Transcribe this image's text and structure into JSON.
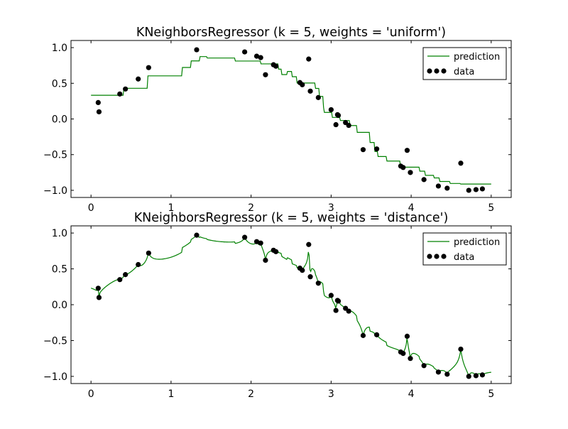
{
  "chart_data": [
    {
      "type": "scatter",
      "title": "KNeighborsRegressor (k = 5, weights = 'uniform')",
      "k": 5,
      "weights": "uniform",
      "xlim": [
        -0.25,
        5.25
      ],
      "ylim": [
        -1.1,
        1.1
      ],
      "xticks": [
        0,
        1,
        2,
        3,
        4,
        5
      ],
      "xtick_labels": [
        "0",
        "1",
        "2",
        "3",
        "4",
        "5"
      ],
      "yticks": [
        -1.0,
        -0.5,
        0.0,
        0.5,
        1.0
      ],
      "ytick_labels": [
        "−1.0",
        "−0.5",
        "0.0",
        "0.5",
        "1.0"
      ],
      "legend": {
        "placement": "top-right",
        "entries": [
          "prediction",
          "data"
        ]
      },
      "grid": false
    },
    {
      "type": "scatter",
      "title": "KNeighborsRegressor (k = 5, weights = 'distance')",
      "k": 5,
      "weights": "distance",
      "xlim": [
        -0.25,
        5.25
      ],
      "ylim": [
        -1.1,
        1.1
      ],
      "xticks": [
        0,
        1,
        2,
        3,
        4,
        5
      ],
      "xtick_labels": [
        "0",
        "1",
        "2",
        "3",
        "4",
        "5"
      ],
      "yticks": [
        -1.0,
        -0.5,
        0.0,
        0.5,
        1.0
      ],
      "ytick_labels": [
        "−1.0",
        "−0.5",
        "0.0",
        "0.5",
        "1.0"
      ],
      "legend": {
        "placement": "top-right",
        "entries": [
          "prediction",
          "data"
        ]
      },
      "grid": false
    }
  ],
  "data_points": {
    "x": [
      0.09,
      0.1,
      0.36,
      0.43,
      0.59,
      0.72,
      1.32,
      1.92,
      2.07,
      2.12,
      2.18,
      2.28,
      2.31,
      2.61,
      2.64,
      2.72,
      2.74,
      2.84,
      3.0,
      3.06,
      3.08,
      3.09,
      3.18,
      3.22,
      3.4,
      3.57,
      3.87,
      3.9,
      3.95,
      3.99,
      4.16,
      4.34,
      4.45,
      4.62,
      4.72,
      4.81,
      4.89
    ],
    "y": [
      0.23,
      0.1,
      0.35,
      0.42,
      0.56,
      0.72,
      0.97,
      0.94,
      0.88,
      0.86,
      0.62,
      0.76,
      0.74,
      0.51,
      0.48,
      0.84,
      0.39,
      0.3,
      0.13,
      -0.08,
      0.06,
      0.05,
      -0.05,
      -0.09,
      -0.43,
      -0.42,
      -0.66,
      -0.68,
      -0.44,
      -0.75,
      -0.85,
      -0.94,
      -0.97,
      -0.62,
      -1.0,
      -0.99,
      -0.98
    ]
  },
  "prediction_grid": {
    "start": 0,
    "stop": 5,
    "count": 500
  },
  "colors": {
    "prediction": "#008000",
    "data": "#000000"
  }
}
